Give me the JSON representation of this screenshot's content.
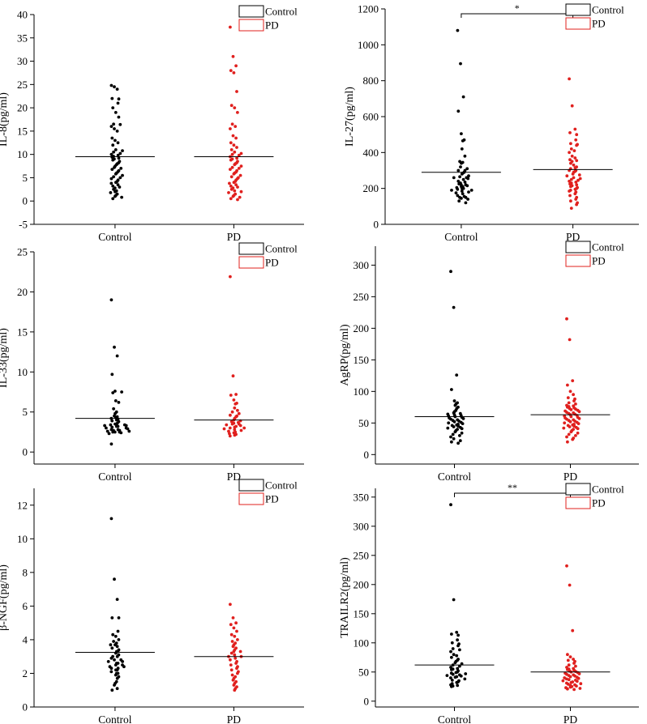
{
  "colors": {
    "control": "#000000",
    "pd": "#e0201e",
    "axis": "#000000"
  },
  "chart_data": [
    {
      "type": "scatter",
      "title": "",
      "ylabel": "IL-8(pg/ml)",
      "xlabel": "",
      "categories": [
        "Control",
        "PD"
      ],
      "ylim": [
        -5,
        40
      ],
      "yticks": [
        -5,
        0,
        5,
        10,
        15,
        20,
        25,
        30,
        35,
        40
      ],
      "legend": {
        "position": "top-right",
        "entries": [
          "Control",
          "PD"
        ]
      },
      "significance": "",
      "series": [
        {
          "name": "Control",
          "color": "#000000",
          "mean": 9.5,
          "values": [
            24.8,
            24.5,
            24.0,
            22.0,
            21.9,
            21.0,
            20.0,
            19.0,
            18.0,
            16.5,
            16.4,
            16.0,
            15.5,
            15.0,
            13.5,
            13.0,
            12.5,
            12.0,
            11.0,
            10.8,
            10.5,
            10.2,
            10.0,
            9.8,
            9.6,
            9.4,
            9.2,
            9.0,
            8.8,
            8.5,
            8.2,
            8.0,
            7.8,
            7.5,
            7.2,
            7.0,
            6.8,
            6.5,
            6.3,
            6.0,
            5.8,
            5.5,
            5.2,
            5.0,
            4.8,
            4.5,
            4.2,
            4.0,
            3.8,
            3.5,
            3.2,
            3.0,
            2.8,
            2.5,
            2.2,
            2.0,
            1.8,
            1.5,
            1.2,
            1.0,
            0.8,
            0.5
          ]
        },
        {
          "name": "PD",
          "color": "#e0201e",
          "mean": 9.5,
          "values": [
            37.3,
            31.0,
            29.0,
            28.0,
            27.5,
            23.5,
            20.5,
            20.0,
            19.0,
            16.5,
            16.0,
            15.5,
            14.0,
            13.5,
            12.5,
            12.0,
            11.5,
            11.0,
            10.5,
            10.2,
            10.0,
            9.8,
            9.5,
            9.2,
            9.0,
            8.8,
            8.5,
            8.2,
            8.0,
            7.8,
            7.5,
            7.2,
            7.0,
            6.8,
            6.5,
            6.2,
            6.0,
            5.8,
            5.5,
            5.2,
            5.0,
            4.8,
            4.5,
            4.2,
            4.0,
            3.8,
            3.5,
            3.2,
            3.0,
            2.8,
            2.5,
            2.2,
            2.0,
            1.8,
            1.5,
            1.2,
            1.0,
            0.8,
            0.5,
            0.3
          ]
        }
      ]
    },
    {
      "type": "scatter",
      "title": "",
      "ylabel": "IL-27(pg/ml)",
      "xlabel": "",
      "categories": [
        "Control",
        "PD"
      ],
      "ylim": [
        0,
        1200
      ],
      "yticks": [
        0,
        200,
        400,
        600,
        800,
        1000,
        1200
      ],
      "legend": {
        "position": "top-right",
        "entries": [
          "Control",
          "PD"
        ]
      },
      "significance": "*",
      "series": [
        {
          "name": "Control",
          "color": "#000000",
          "mean": 290,
          "values": [
            1080,
            895,
            710,
            630,
            505,
            470,
            465,
            420,
            380,
            350,
            345,
            340,
            320,
            310,
            300,
            300,
            290,
            285,
            280,
            270,
            265,
            260,
            260,
            255,
            250,
            240,
            235,
            230,
            225,
            220,
            220,
            215,
            210,
            210,
            205,
            200,
            200,
            195,
            190,
            190,
            185,
            180,
            175,
            170,
            160,
            155,
            150,
            150,
            145,
            140,
            130,
            120
          ]
        },
        {
          "name": "PD",
          "color": "#e0201e",
          "mean": 305,
          "values": [
            810,
            660,
            530,
            510,
            500,
            470,
            450,
            445,
            440,
            420,
            410,
            400,
            380,
            370,
            360,
            355,
            350,
            340,
            330,
            320,
            315,
            310,
            300,
            300,
            295,
            290,
            280,
            275,
            270,
            260,
            255,
            250,
            245,
            240,
            235,
            230,
            225,
            220,
            215,
            210,
            205,
            200,
            195,
            190,
            185,
            180,
            170,
            160,
            150,
            140,
            130,
            120,
            110,
            90
          ]
        }
      ]
    },
    {
      "type": "scatter",
      "title": "",
      "ylabel": "IL-33(pg/ml)",
      "xlabel": "",
      "categories": [
        "Control",
        "PD"
      ],
      "ylim": [
        -1.5,
        25
      ],
      "yticks": [
        0,
        5,
        10,
        15,
        20,
        25
      ],
      "legend": {
        "position": "top-right",
        "entries": [
          "Control",
          "PD"
        ]
      },
      "significance": "",
      "series": [
        {
          "name": "Control",
          "color": "#000000",
          "mean": 4.2,
          "values": [
            19.0,
            13.1,
            12.0,
            9.7,
            7.6,
            7.5,
            7.4,
            6.4,
            6.2,
            5.4,
            5.0,
            4.8,
            4.5,
            4.4,
            4.3,
            4.2,
            4.1,
            4.0,
            3.9,
            3.8,
            3.6,
            3.5,
            3.5,
            3.4,
            3.4,
            3.3,
            3.3,
            3.2,
            3.2,
            3.1,
            3.0,
            3.0,
            2.9,
            2.8,
            2.8,
            2.7,
            2.7,
            2.6,
            2.6,
            2.5,
            2.5,
            2.5,
            2.4,
            2.3,
            1.0
          ]
        },
        {
          "name": "PD",
          "color": "#e0201e",
          "mean": 4.0,
          "values": [
            21.9,
            9.5,
            7.2,
            7.1,
            6.5,
            6.1,
            6.0,
            5.5,
            5.2,
            5.0,
            4.8,
            4.6,
            4.5,
            4.4,
            4.2,
            4.0,
            3.9,
            3.8,
            3.7,
            3.6,
            3.5,
            3.5,
            3.4,
            3.3,
            3.2,
            3.1,
            3.0,
            3.0,
            2.9,
            2.8,
            2.7,
            2.6,
            2.5,
            2.4,
            2.3,
            2.2,
            2.1,
            2.0
          ]
        }
      ]
    },
    {
      "type": "scatter",
      "title": "",
      "ylabel": "AgRP(pg/ml)",
      "xlabel": "",
      "categories": [
        "Control",
        "PD"
      ],
      "ylim": [
        -15,
        330
      ],
      "yticks": [
        0,
        50,
        100,
        150,
        200,
        250,
        300
      ],
      "legend": {
        "position": "top-right",
        "entries": [
          "Control",
          "PD"
        ]
      },
      "significance": "",
      "series": [
        {
          "name": "Control",
          "color": "#000000",
          "mean": 60,
          "values": [
            290,
            233,
            126,
            103,
            85,
            82,
            80,
            78,
            75,
            73,
            70,
            68,
            66,
            65,
            64,
            63,
            62,
            61,
            60,
            59,
            58,
            57,
            56,
            55,
            54,
            53,
            52,
            51,
            50,
            49,
            48,
            47,
            46,
            45,
            44,
            43,
            42,
            41,
            40,
            38,
            36,
            34,
            32,
            30,
            28,
            25,
            22,
            20,
            18
          ]
        },
        {
          "name": "PD",
          "color": "#e0201e",
          "mean": 63,
          "values": [
            215,
            182,
            117,
            110,
            100,
            95,
            90,
            88,
            85,
            82,
            80,
            78,
            77,
            76,
            75,
            74,
            73,
            72,
            71,
            70,
            69,
            68,
            67,
            66,
            65,
            64,
            63,
            62,
            61,
            60,
            59,
            58,
            57,
            56,
            55,
            54,
            53,
            52,
            51,
            50,
            49,
            48,
            47,
            46,
            45,
            44,
            43,
            42,
            41,
            40,
            38,
            36,
            34,
            32,
            30,
            28,
            26,
            24,
            20
          ]
        }
      ]
    },
    {
      "type": "scatter",
      "title": "",
      "ylabel": "β-NGF(pg/ml)",
      "xlabel": "",
      "categories": [
        "Control",
        "PD"
      ],
      "ylim": [
        0,
        13
      ],
      "yticks": [
        0,
        2,
        4,
        6,
        8,
        10,
        12
      ],
      "legend": {
        "position": "top-right",
        "entries": [
          "Control",
          "PD"
        ]
      },
      "significance": "",
      "series": [
        {
          "name": "Control",
          "color": "#000000",
          "mean": 3.25,
          "values": [
            11.2,
            7.6,
            6.4,
            5.3,
            5.3,
            4.5,
            4.3,
            4.2,
            4.0,
            3.9,
            3.8,
            3.7,
            3.7,
            3.6,
            3.5,
            3.4,
            3.3,
            3.3,
            3.2,
            3.1,
            3.0,
            3.0,
            2.9,
            2.8,
            2.8,
            2.7,
            2.7,
            2.6,
            2.6,
            2.5,
            2.5,
            2.4,
            2.4,
            2.3,
            2.3,
            2.2,
            2.2,
            2.1,
            2.0,
            2.0,
            1.9,
            1.8,
            1.7,
            1.5,
            1.4,
            1.3,
            1.1,
            1.0
          ]
        },
        {
          "name": "PD",
          "color": "#e0201e",
          "mean": 3.0,
          "values": [
            6.1,
            5.3,
            5.0,
            4.9,
            4.7,
            4.5,
            4.3,
            4.2,
            4.0,
            3.9,
            3.8,
            3.7,
            3.6,
            3.5,
            3.4,
            3.3,
            3.3,
            3.2,
            3.1,
            3.0,
            3.0,
            2.9,
            2.8,
            2.7,
            2.6,
            2.5,
            2.4,
            2.3,
            2.2,
            2.1,
            2.0,
            1.9,
            1.8,
            1.7,
            1.6,
            1.5,
            1.4,
            1.3,
            1.2,
            1.1,
            1.0
          ]
        }
      ]
    },
    {
      "type": "scatter",
      "title": "",
      "ylabel": "TRAILR2(pg/ml)",
      "xlabel": "",
      "categories": [
        "Control",
        "PD"
      ],
      "ylim": [
        -10,
        365
      ],
      "yticks": [
        0,
        50,
        100,
        150,
        200,
        250,
        300,
        350
      ],
      "legend": {
        "position": "top-right",
        "entries": [
          "Control",
          "PD"
        ]
      },
      "significance": "**",
      "series": [
        {
          "name": "Control",
          "color": "#000000",
          "mean": 62,
          "values": [
            337,
            174,
            118,
            115,
            113,
            105,
            100,
            98,
            95,
            90,
            88,
            85,
            80,
            78,
            75,
            72,
            70,
            68,
            66,
            64,
            62,
            60,
            58,
            56,
            55,
            54,
            52,
            50,
            49,
            48,
            47,
            46,
            45,
            44,
            43,
            42,
            41,
            40,
            38,
            36,
            35,
            33,
            32,
            30,
            28,
            27,
            26,
            25
          ]
        },
        {
          "name": "PD",
          "color": "#e0201e",
          "mean": 50,
          "values": [
            232,
            199,
            121,
            80,
            76,
            72,
            70,
            68,
            65,
            62,
            60,
            58,
            56,
            55,
            54,
            53,
            52,
            51,
            50,
            49,
            48,
            47,
            46,
            45,
            44,
            43,
            42,
            41,
            40,
            39,
            38,
            37,
            36,
            35,
            34,
            33,
            32,
            31,
            30,
            29,
            28,
            27,
            26,
            25,
            24,
            23,
            22,
            21,
            20
          ]
        }
      ]
    }
  ]
}
